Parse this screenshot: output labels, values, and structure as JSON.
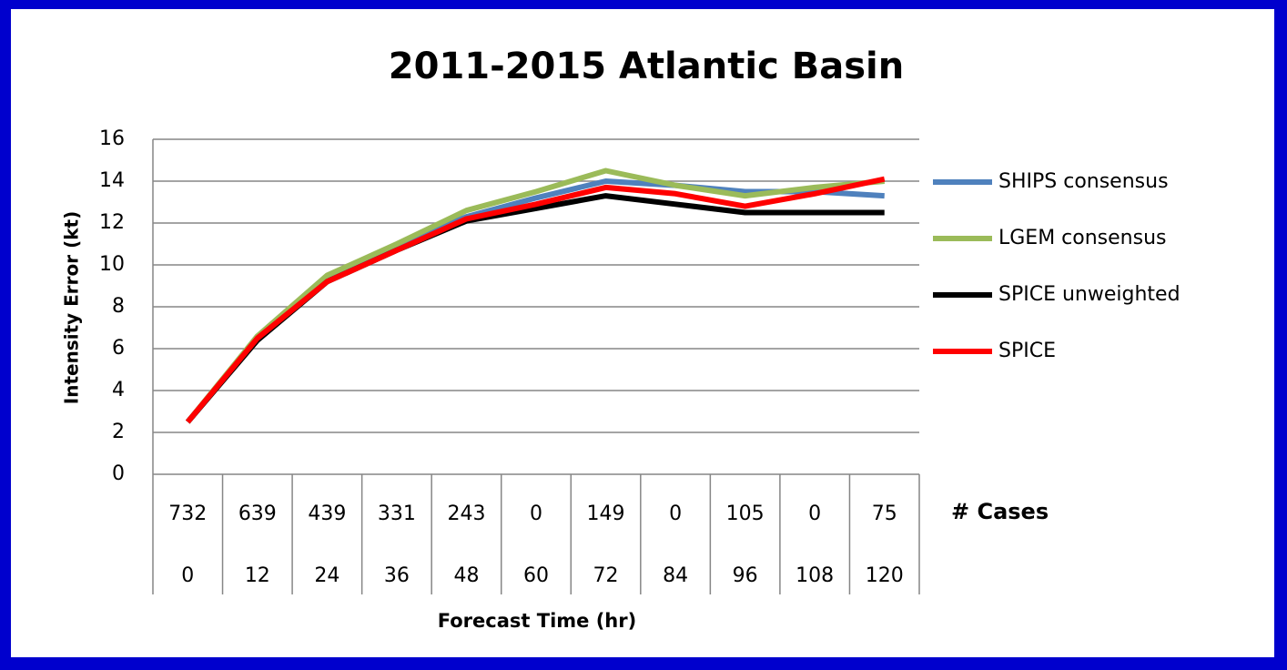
{
  "chart_data": {
    "type": "line",
    "title": "2011-2015 Atlantic Basin",
    "y_title": "Intensity Error (kt)",
    "x_title": "Forecast Time (hr)",
    "cases_label": "# Cases",
    "categories": [
      "0",
      "12",
      "24",
      "36",
      "48",
      "60",
      "72",
      "84",
      "96",
      "108",
      "120"
    ],
    "cases": [
      "732",
      "639",
      "439",
      "331",
      "243",
      "0",
      "149",
      "0",
      "105",
      "0",
      "75"
    ],
    "ylim": [
      0,
      16
    ],
    "yticks": [
      0,
      2,
      4,
      6,
      8,
      10,
      12,
      14,
      16
    ],
    "grid": true,
    "legend": "right",
    "series": [
      {
        "name": "SHIPS consensus",
        "color": "#4f81bd",
        "values": [
          2.5,
          6.5,
          9.3,
          10.9,
          12.3,
          13.2,
          14.0,
          13.8,
          13.5,
          13.5,
          13.3
        ]
      },
      {
        "name": "LGEM consensus",
        "color": "#9bbb59",
        "values": [
          2.5,
          6.6,
          9.5,
          11.0,
          12.6,
          13.5,
          14.5,
          13.8,
          13.3,
          13.7,
          14.0
        ]
      },
      {
        "name": "SPICE unweighted",
        "color": "#000000",
        "values": [
          2.5,
          6.4,
          9.2,
          10.7,
          12.1,
          12.7,
          13.3,
          12.9,
          12.5,
          12.5,
          12.5
        ]
      },
      {
        "name": "SPICE",
        "color": "#ff0000",
        "values": [
          2.5,
          6.5,
          9.2,
          10.7,
          12.2,
          12.9,
          13.7,
          13.4,
          12.8,
          13.4,
          14.1
        ]
      }
    ]
  }
}
